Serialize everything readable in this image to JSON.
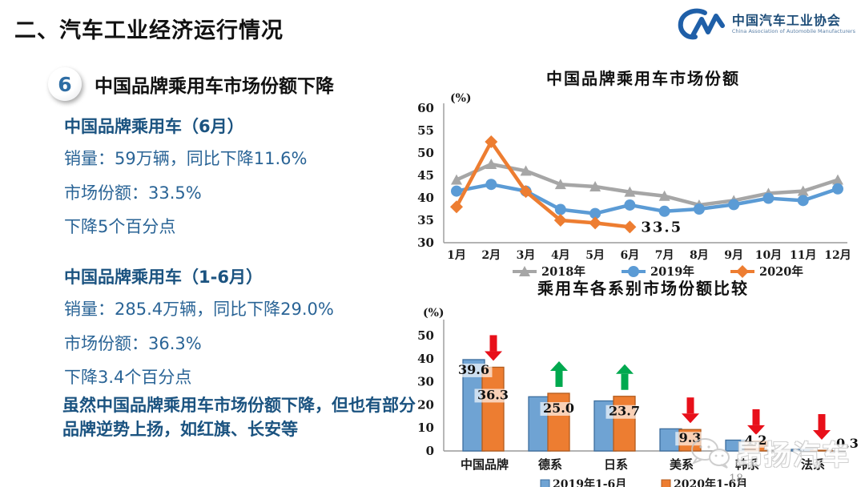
{
  "slide": {
    "section_title": "二、汽车工业经济运行情况",
    "page_number": "18"
  },
  "logo": {
    "org_cn": "中国汽车工业协会",
    "org_en": "China Association of Automobile Manufacturers",
    "brand_color": "#1f5fa8"
  },
  "left_panel": {
    "badge": "6",
    "heading": "中国品牌乘用车市场份额下降",
    "block_june": {
      "title": "中国品牌乘用车（6月）",
      "lines": [
        "销量：59万辆，同比下降11.6%",
        "市场份额：33.5%",
        "下降5个百分点"
      ]
    },
    "block_h1": {
      "title": "中国品牌乘用车（1-6月）",
      "lines": [
        "销量：285.4万辆，同比下降29.0%",
        "市场份额：36.3%",
        "下降3.4个百分点"
      ]
    },
    "note": "虽然中国品牌乘用车市场份额下降，但也有部分品牌逆势上扬，如红旗、长安等"
  },
  "watermark": {
    "text": "昂扬汽车"
  },
  "chart_data": [
    {
      "type": "line",
      "title": "中国品牌乘用车市场份额",
      "unit_label": "(%)",
      "x": [
        "1月",
        "2月",
        "3月",
        "4月",
        "5月",
        "6月",
        "7月",
        "8月",
        "9月",
        "10月",
        "11月",
        "12月"
      ],
      "ylim": [
        30,
        60
      ],
      "ytick_step": 5,
      "grid": false,
      "legend_position": "bottom",
      "series": [
        {
          "name": "2018年",
          "color": "#a6a6a6",
          "marker": "triangle",
          "values": [
            44,
            47.5,
            46,
            43,
            42.5,
            41.3,
            40.4,
            38.4,
            39.4,
            41,
            41.5,
            44
          ]
        },
        {
          "name": "2019年",
          "color": "#5b9bd5",
          "marker": "circle",
          "values": [
            41.5,
            43,
            41.5,
            37.4,
            36.5,
            38.4,
            37,
            37.5,
            38.5,
            39.9,
            39.4,
            42
          ]
        },
        {
          "name": "2020年",
          "color": "#ed7d31",
          "marker": "diamond",
          "values": [
            38,
            52.5,
            41.4,
            35,
            34.4,
            33.5
          ]
        }
      ],
      "annotation": {
        "text": "33.5",
        "series_index": 2,
        "point_index": 5
      }
    },
    {
      "type": "bar",
      "title": "乘用车各系别市场份额比较",
      "unit_label": "(%)",
      "categories": [
        "中国品牌",
        "德系",
        "日系",
        "美系",
        "韩系",
        "法系"
      ],
      "ylim": [
        0,
        50
      ],
      "ytick_step": 10,
      "grid": false,
      "legend_position": "bottom",
      "series": [
        {
          "name": "2019年1-6月",
          "color": "#6fa3d3",
          "edge": "#3d6e9e",
          "values": [
            39.6,
            23.5,
            21.7,
            9.6,
            4.7,
            0.7
          ]
        },
        {
          "name": "2020年1-6月",
          "color": "#ed7d31",
          "edge": "#b35c1e",
          "values": [
            36.3,
            25.0,
            23.7,
            9.3,
            4.2,
            0.3
          ]
        }
      ],
      "bar_labels": [
        [
          "39.6",
          null,
          null,
          null,
          null,
          null
        ],
        [
          "36.3",
          "25.0",
          "23.7",
          "9.3",
          "4.2",
          "0.3"
        ]
      ],
      "trend_arrows": [
        "down",
        "up",
        "up",
        "down",
        "down",
        "down"
      ],
      "arrow_colors": {
        "up": "#00a94f",
        "down": "#e8101a"
      }
    }
  ]
}
